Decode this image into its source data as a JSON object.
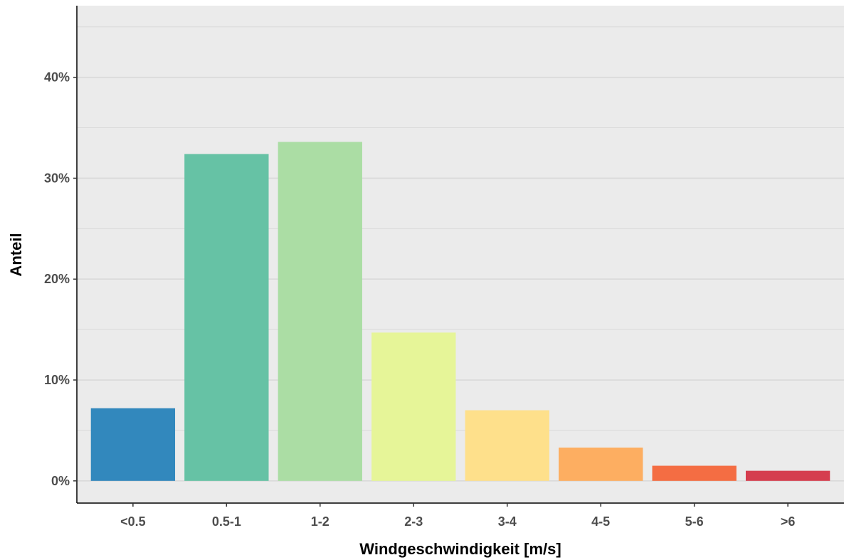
{
  "chart_data": {
    "type": "bar",
    "title": "",
    "xlabel": "Windgeschwindigkeit [m/s]",
    "ylabel": "Anteil",
    "categories": [
      "<0.5",
      "0.5-1",
      "1-2",
      "2-3",
      "3-4",
      "4-5",
      "5-6",
      ">6"
    ],
    "values": [
      7.2,
      32.4,
      33.6,
      14.7,
      7.0,
      3.3,
      1.5,
      1.0
    ],
    "colors": [
      "#3288bd",
      "#66c2a5",
      "#abdda4",
      "#e6f598",
      "#fee08b",
      "#fdae61",
      "#f46d43",
      "#d53e4f"
    ],
    "ylim": [
      -2.2,
      47.1
    ],
    "yticks": [
      0,
      10,
      20,
      30,
      40
    ],
    "ytick_labels": [
      "0%",
      "10%",
      "20%",
      "30%",
      "40%"
    ],
    "panel_background": "#ebebeb",
    "grid": true,
    "legend": "none"
  }
}
